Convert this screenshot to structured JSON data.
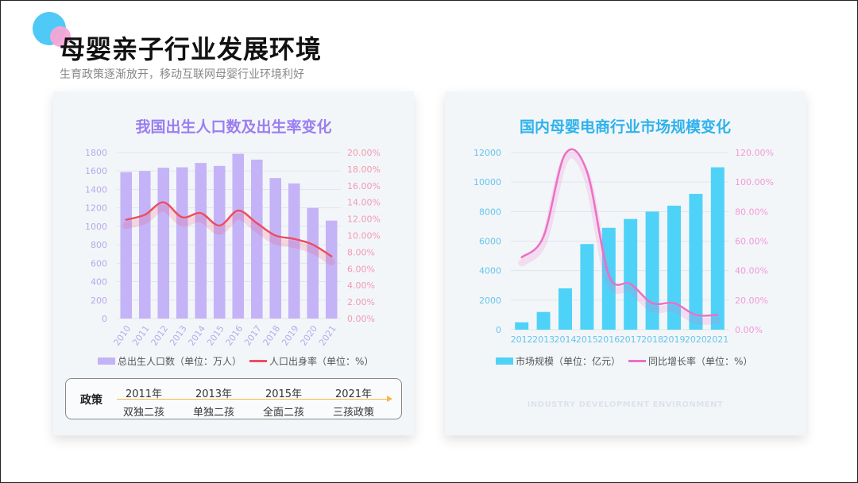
{
  "page": {
    "title": "母婴亲子行业发展环境",
    "subtitle": "生育政策逐渐放开，移动互联网母婴行业环境利好"
  },
  "left_card": {
    "policy": {
      "label": "政策",
      "items": [
        {
          "year": "2011年",
          "name": "双独二孩"
        },
        {
          "year": "2013年",
          "name": "单独二孩"
        },
        {
          "year": "2015年",
          "name": "全面二孩"
        },
        {
          "year": "2021年",
          "name": "三孩政策"
        }
      ]
    }
  },
  "right_card": {
    "watermark": "INDUSTRY DEVELOPMENT ENVIRONMENT"
  },
  "chart_data": [
    {
      "type": "bar",
      "title": "我国出生人口数及出生率变化",
      "categories": [
        "2010",
        "2011",
        "2012",
        "2013",
        "2014",
        "2015",
        "2016",
        "2017",
        "2018",
        "2019",
        "2020",
        "2021"
      ],
      "y_ticks": [
        "0",
        "200",
        "400",
        "600",
        "800",
        "1000",
        "1200",
        "1400",
        "1600",
        "1800"
      ],
      "y2_ticks": [
        "0.00%",
        "2.00%",
        "4.00%",
        "6.00%",
        "8.00%",
        "10.00%",
        "12.00%",
        "14.00%",
        "16.00%",
        "18.00%",
        "20.00%"
      ],
      "ylim": [
        0,
        1800
      ],
      "y2lim": [
        0,
        20
      ],
      "series": [
        {
          "name": "总出生人口数（单位：万人）",
          "kind": "bar",
          "axis": "y",
          "values": [
            1588,
            1600,
            1635,
            1640,
            1687,
            1655,
            1786,
            1723,
            1523,
            1465,
            1200,
            1062
          ]
        },
        {
          "name": "人口出身率（单位：%）",
          "kind": "line",
          "axis": "y2",
          "values": [
            11.9,
            12.5,
            14.0,
            12.2,
            12.7,
            11.2,
            13.0,
            11.5,
            10.0,
            9.6,
            8.9,
            7.5
          ]
        }
      ],
      "colors": {
        "bar": "#c5b3f7",
        "line": "#ee4d63",
        "axis_left": "#b8a8ea",
        "axis_right": "#f29aaf"
      },
      "grid": true,
      "legend": "bottom"
    },
    {
      "type": "bar",
      "title": "国内母婴电商行业市场规模变化",
      "categories": [
        "2012",
        "2013",
        "2014",
        "2015",
        "2016",
        "2017",
        "2018",
        "2019",
        "2020",
        "2021"
      ],
      "y_ticks": [
        "0",
        "2000",
        "4000",
        "6000",
        "8000",
        "10000",
        "12000"
      ],
      "y2_ticks": [
        "0.00%",
        "20.00%",
        "40.00%",
        "60.00%",
        "80.00%",
        "100.00%",
        "120.00%"
      ],
      "ylim": [
        0,
        12000
      ],
      "y2lim": [
        0,
        120
      ],
      "series": [
        {
          "name": "市场规模（单位：亿元）",
          "kind": "bar",
          "axis": "y",
          "values": [
            500,
            1200,
            2800,
            5800,
            6900,
            7500,
            8000,
            8400,
            9200,
            11000
          ]
        },
        {
          "name": "同比增长率（单位：%）",
          "kind": "line",
          "axis": "y2",
          "values": [
            49,
            63,
            119,
            107,
            37,
            31,
            18,
            18,
            10,
            10
          ]
        }
      ],
      "colors": {
        "bar": "#4fd2f7",
        "line": "#ec6fc6",
        "axis_left": "#66c5ea",
        "axis_right": "#f29ad7"
      },
      "grid": true,
      "legend": "bottom"
    }
  ]
}
